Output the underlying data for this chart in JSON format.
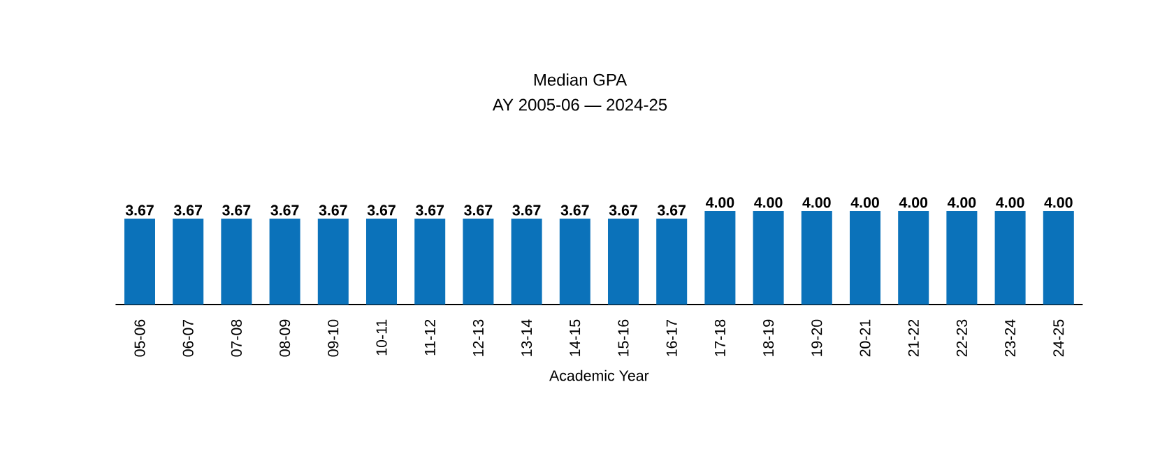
{
  "chart_data": {
    "type": "bar",
    "title": "Median GPA",
    "subtitle": "AY 2005-06 — 2024-25",
    "xlabel": "Academic Year",
    "categories": [
      "05-06",
      "06-07",
      "07-08",
      "08-09",
      "09-10",
      "10-11",
      "11-12",
      "12-13",
      "13-14",
      "14-15",
      "15-16",
      "16-17",
      "17-18",
      "18-19",
      "19-20",
      "20-21",
      "21-22",
      "22-23",
      "23-24",
      "24-25"
    ],
    "values": [
      3.67,
      3.67,
      3.67,
      3.67,
      3.67,
      3.67,
      3.67,
      3.67,
      3.67,
      3.67,
      3.67,
      3.67,
      4.0,
      4.0,
      4.0,
      4.0,
      4.0,
      4.0,
      4.0,
      4.0
    ],
    "value_labels": [
      "3.67",
      "3.67",
      "3.67",
      "3.67",
      "3.67",
      "3.67",
      "3.67",
      "3.67",
      "3.67",
      "3.67",
      "3.67",
      "3.67",
      "4.00",
      "4.00",
      "4.00",
      "4.00",
      "4.00",
      "4.00",
      "4.00",
      "4.00"
    ],
    "color": "#0b72ba"
  }
}
